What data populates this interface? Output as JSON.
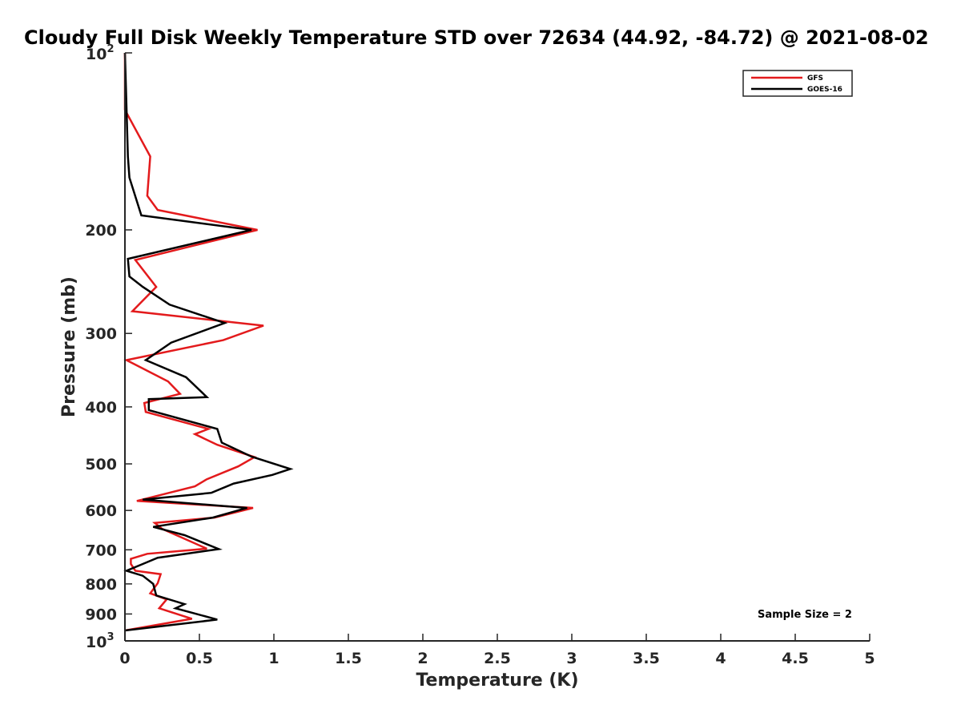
{
  "chart_data": {
    "type": "line",
    "title": "Cloudy Full Disk Weekly Temperature STD over 72634 (44.92, -84.72) @ 2021-08-02",
    "xlabel": "Temperature (K)",
    "ylabel": "Pressure (mb)",
    "xlim": [
      0,
      5
    ],
    "ylim": [
      100,
      1000
    ],
    "y_scale": "log",
    "y_reversed": true,
    "grid": false,
    "legend_position": "top-right",
    "x_ticks": [
      "0",
      "0.5",
      "1",
      "1.5",
      "2",
      "2.5",
      "3",
      "3.5",
      "4",
      "4.5",
      "5"
    ],
    "y_ticks": [
      {
        "value": 100,
        "base": "10",
        "exp": "2"
      },
      {
        "value": 200,
        "label": "200"
      },
      {
        "value": 300,
        "label": "300"
      },
      {
        "value": 400,
        "label": "400"
      },
      {
        "value": 500,
        "label": "500"
      },
      {
        "value": 600,
        "label": "600"
      },
      {
        "value": 700,
        "label": "700"
      },
      {
        "value": 800,
        "label": "800"
      },
      {
        "value": 900,
        "label": "900"
      },
      {
        "value": 1000,
        "base": "10",
        "exp": "3"
      }
    ],
    "annotation": "Sample Size = 2",
    "series": [
      {
        "name": "GFS",
        "color": "#e31a1c",
        "points": [
          [
            0,
            100
          ],
          [
            0,
            125
          ],
          [
            0.17,
            150
          ],
          [
            0.15,
            175
          ],
          [
            0.22,
            185
          ],
          [
            0.89,
            200
          ],
          [
            0.07,
            225
          ],
          [
            0.21,
            250
          ],
          [
            0.05,
            275
          ],
          [
            0.93,
            291
          ],
          [
            0.66,
            308
          ],
          [
            0.01,
            333
          ],
          [
            0.29,
            362
          ],
          [
            0.37,
            380
          ],
          [
            0.13,
            394
          ],
          [
            0.14,
            408
          ],
          [
            0.56,
            436
          ],
          [
            0.47,
            445
          ],
          [
            0.62,
            464
          ],
          [
            0.87,
            487
          ],
          [
            0.76,
            505
          ],
          [
            0.55,
            531
          ],
          [
            0.47,
            546
          ],
          [
            0.08,
            578
          ],
          [
            0.86,
            594
          ],
          [
            0.6,
            617
          ],
          [
            0.2,
            630
          ],
          [
            0.25,
            645
          ],
          [
            0.55,
            697
          ],
          [
            0.15,
            711
          ],
          [
            0.04,
            725
          ],
          [
            0.04,
            740
          ],
          [
            0.07,
            760
          ],
          [
            0.24,
            770
          ],
          [
            0.22,
            798
          ],
          [
            0.17,
            830
          ],
          [
            0.28,
            850
          ],
          [
            0.23,
            880
          ],
          [
            0.45,
            917
          ],
          [
            0,
            960
          ]
        ]
      },
      {
        "name": "GOES-16",
        "color": "#000000",
        "points": [
          [
            0,
            100
          ],
          [
            0.02,
            150
          ],
          [
            0.03,
            163
          ],
          [
            0.11,
            189
          ],
          [
            0.85,
            200
          ],
          [
            0.02,
            224
          ],
          [
            0.03,
            240
          ],
          [
            0.12,
            250
          ],
          [
            0.3,
            268
          ],
          [
            0.67,
            288
          ],
          [
            0.31,
            311
          ],
          [
            0.14,
            333
          ],
          [
            0.41,
            356
          ],
          [
            0.55,
            385
          ],
          [
            0.16,
            388
          ],
          [
            0.16,
            405
          ],
          [
            0.62,
            436
          ],
          [
            0.65,
            460
          ],
          [
            0.85,
            486
          ],
          [
            1.11,
            510
          ],
          [
            0.99,
            522
          ],
          [
            0.73,
            540
          ],
          [
            0.58,
            560
          ],
          [
            0.12,
            575
          ],
          [
            0.82,
            594
          ],
          [
            0.59,
            617
          ],
          [
            0.19,
            640
          ],
          [
            0.4,
            661
          ],
          [
            0.63,
            698
          ],
          [
            0.22,
            722
          ],
          [
            0.12,
            740
          ],
          [
            0.01,
            760
          ],
          [
            0.12,
            775
          ],
          [
            0.19,
            800
          ],
          [
            0.21,
            837
          ],
          [
            0.4,
            866
          ],
          [
            0.34,
            880
          ],
          [
            0.62,
            920
          ],
          [
            0,
            960
          ]
        ]
      }
    ]
  }
}
